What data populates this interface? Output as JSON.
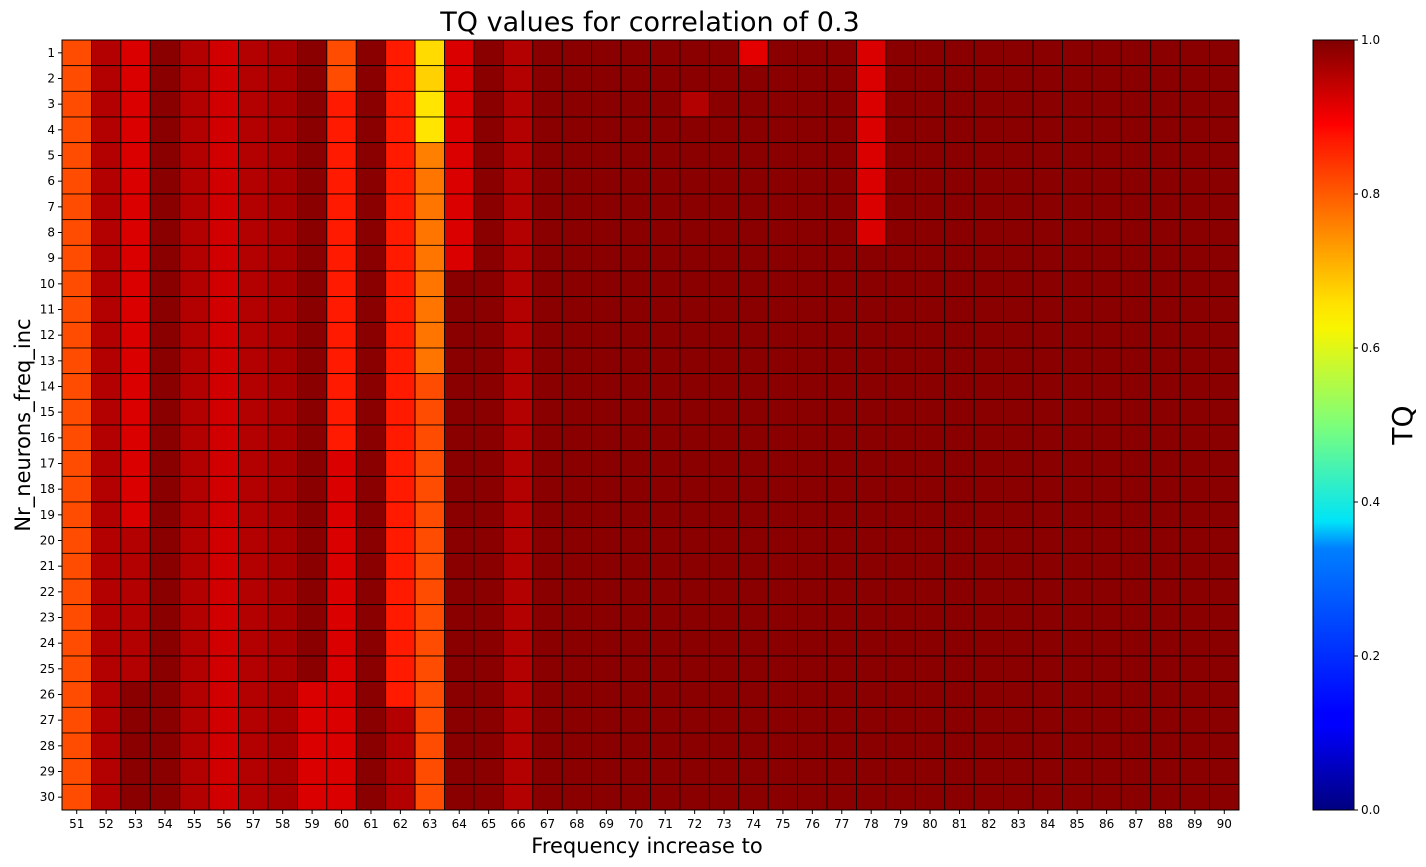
{
  "chart_data": {
    "type": "heatmap",
    "title": "TQ values for correlation of 0.3",
    "xlabel": "Frequency increase to",
    "ylabel": "Nr_neurons_freq_inc",
    "colorbar_label": "TQ",
    "colormap": "jet",
    "vmin": 0.0,
    "vmax": 1.0,
    "colorbar_ticks": [
      "0.0",
      "0.2",
      "0.4",
      "0.6",
      "0.8",
      "1.0"
    ],
    "x": [
      51,
      52,
      53,
      54,
      55,
      56,
      57,
      58,
      59,
      60,
      61,
      62,
      63,
      64,
      65,
      66,
      67,
      68,
      69,
      70,
      71,
      72,
      73,
      74,
      75,
      76,
      77,
      78,
      79,
      80,
      81,
      82,
      83,
      84,
      85,
      86,
      87,
      88,
      89,
      90
    ],
    "y": [
      1,
      2,
      3,
      4,
      5,
      6,
      7,
      8,
      9,
      10,
      11,
      12,
      13,
      14,
      15,
      16,
      17,
      18,
      19,
      20,
      21,
      22,
      23,
      24,
      25,
      26,
      27,
      28,
      29,
      30
    ],
    "column_profiles": {
      "51": [
        [
          1,
          30,
          0.8
        ]
      ],
      "52": [
        [
          1,
          30,
          0.95
        ]
      ],
      "53": [
        [
          1,
          19,
          0.91
        ],
        [
          20,
          25,
          0.95
        ],
        [
          26,
          30,
          0.99
        ]
      ],
      "54": [
        [
          1,
          30,
          0.99
        ]
      ],
      "55": [
        [
          1,
          30,
          0.95
        ]
      ],
      "56": [
        [
          1,
          30,
          0.92
        ]
      ],
      "57": [
        [
          1,
          30,
          0.95
        ]
      ],
      "58": [
        [
          1,
          30,
          0.96
        ]
      ],
      "59": [
        [
          1,
          25,
          0.99
        ],
        [
          26,
          30,
          0.91
        ]
      ],
      "60": [
        [
          1,
          2,
          0.8
        ],
        [
          3,
          16,
          0.85
        ],
        [
          17,
          30,
          0.91
        ]
      ],
      "61": [
        [
          1,
          30,
          0.99
        ]
      ],
      "62": [
        [
          1,
          26,
          0.85
        ],
        [
          27,
          30,
          0.95
        ]
      ],
      "63": [
        [
          1,
          1,
          0.66
        ],
        [
          2,
          2,
          0.67
        ],
        [
          3,
          4,
          0.65
        ],
        [
          5,
          5,
          0.75
        ],
        [
          6,
          13,
          0.76
        ],
        [
          14,
          30,
          0.8
        ]
      ],
      "64": [
        [
          1,
          9,
          0.91
        ],
        [
          10,
          30,
          0.99
        ]
      ],
      "65": [
        [
          1,
          30,
          0.99
        ]
      ],
      "66": [
        [
          1,
          30,
          0.95
        ]
      ],
      "72": [
        [
          1,
          2,
          0.99
        ],
        [
          3,
          3,
          0.95
        ],
        [
          4,
          30,
          0.99
        ]
      ],
      "74": [
        [
          1,
          1,
          0.9
        ],
        [
          2,
          30,
          0.99
        ]
      ],
      "78": [
        [
          1,
          8,
          0.91
        ],
        [
          9,
          30,
          0.99
        ]
      ]
    },
    "default_value": 0.99
  }
}
